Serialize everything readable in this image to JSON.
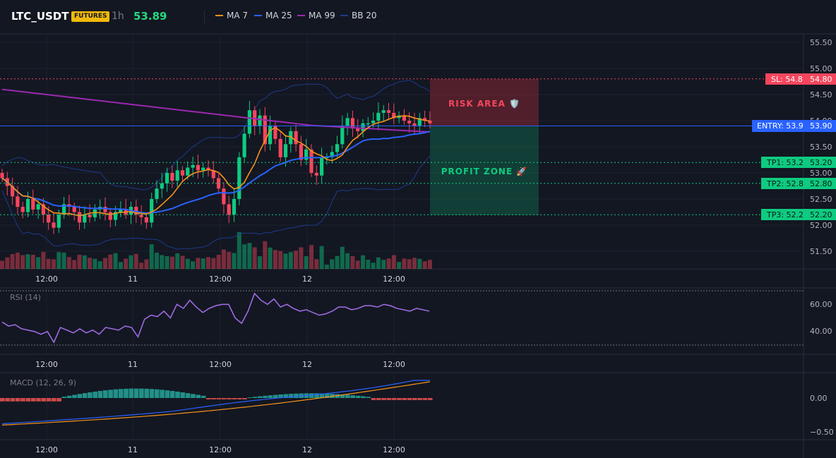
{
  "header": {
    "symbol": "LTC_USDT",
    "badge": "FUTURES",
    "timeframe": "1h",
    "last_price": "53.89",
    "indicators": [
      {
        "label": "MA 7",
        "color": "#f7931a"
      },
      {
        "label": "MA 25",
        "color": "#2962ff"
      },
      {
        "label": "MA 99",
        "color": "#9c27b0"
      },
      {
        "label": "BB 20",
        "color": "#1e3a8a"
      }
    ]
  },
  "price_axis": {
    "ticks": [
      "55.50",
      "55.00",
      "54.50",
      "54.00",
      "53.50",
      "53.00",
      "52.50",
      "52.00",
      "51.50"
    ]
  },
  "time_axis": [
    "12:00",
    "11",
    "12:00",
    "12",
    "12:00"
  ],
  "levels": {
    "stop_loss": {
      "label": "SL: 54.8",
      "price": "54.80",
      "value": 54.8,
      "color": "#f23645"
    },
    "entry": {
      "label": "ENTRY: 53.9",
      "price": "53.90",
      "value": 53.9,
      "color": "#2962ff"
    },
    "take_profits": [
      {
        "label": "TP1: 53.2",
        "price": "53.20",
        "value": 53.2
      },
      {
        "label": "TP2: 52.8",
        "price": "52.80",
        "value": 52.8
      },
      {
        "label": "TP3: 52.2",
        "price": "52.20",
        "value": 52.2
      }
    ]
  },
  "zones": {
    "risk_label": "RISK AREA 🛡️",
    "profit_label": "PROFIT ZONE 🚀"
  },
  "rsi": {
    "title": "RSI (14)",
    "ticks": [
      "60.00",
      "40.00"
    ],
    "upper": 70,
    "lower": 30,
    "color": "#9c6ade"
  },
  "macd": {
    "title": "MACD (12, 26, 9)",
    "ticks": [
      "0.00",
      "−0.50"
    ]
  },
  "colors": {
    "up": "#0ecb81",
    "down": "#f6465d",
    "tp": "#0ecb81"
  }
}
